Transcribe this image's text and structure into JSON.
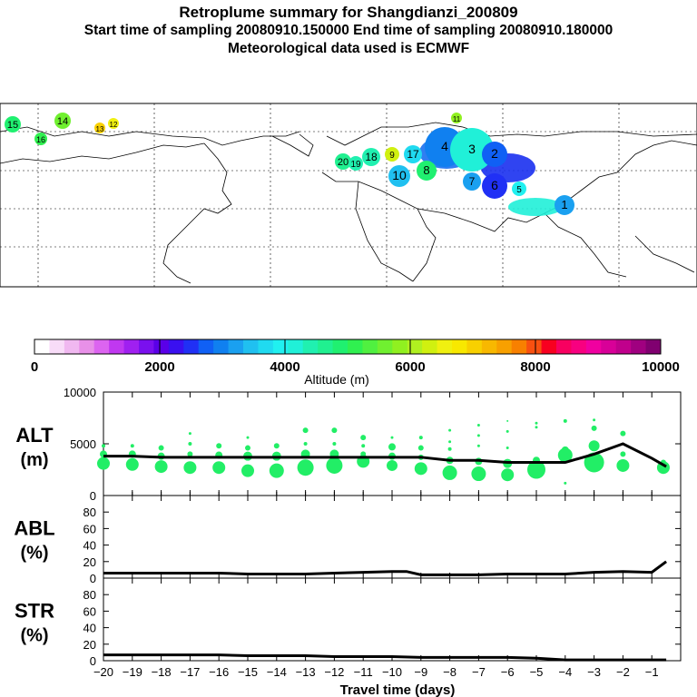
{
  "header": {
    "title": "Retroplume summary for Shangdianzi_200809",
    "sampling": "Start time of sampling 20080910.150000     End time of sampling 20080910.180000",
    "meteo": "Meteorological data used is ECMWF"
  },
  "colorbar": {
    "label": "Altitude (m)",
    "ticks": [
      "0",
      "2000",
      "4000",
      "6000",
      "8000",
      "10000"
    ],
    "colors": [
      "#ffffff",
      "#f8dcf8",
      "#f0b8f0",
      "#e890e8",
      "#dc64f0",
      "#c038f0",
      "#a020f0",
      "#7a10ee",
      "#5a00e8",
      "#3a10f0",
      "#2030f5",
      "#1060f5",
      "#1080f0",
      "#1aa0f0",
      "#20c0f0",
      "#20daf0",
      "#20f0f0",
      "#20f0d8",
      "#20f0b0",
      "#20f090",
      "#20f070",
      "#30f050",
      "#50f040",
      "#70f030",
      "#90f020",
      "#b0f020",
      "#d0f010",
      "#f0f010",
      "#f8e800",
      "#f8d000",
      "#f8b800",
      "#f8a000",
      "#f88000",
      "#f85010",
      "#f80020",
      "#f80060",
      "#f80080",
      "#f000a0",
      "#d80098",
      "#c0008c",
      "#a00080",
      "#800070"
    ]
  },
  "map_labels": [
    {
      "n": "15",
      "c": "#20f070"
    },
    {
      "n": "14",
      "c": "#70f030"
    },
    {
      "n": "13",
      "c": "#f8d000"
    },
    {
      "n": "12",
      "c": "#f0f010"
    },
    {
      "n": "16",
      "c": "#30f050"
    },
    {
      "n": "11",
      "c": "#90f020"
    },
    {
      "n": "20",
      "c": "#20f090"
    },
    {
      "n": "19",
      "c": "#20f0b0"
    },
    {
      "n": "18",
      "c": "#20f0b0"
    },
    {
      "n": "17",
      "c": "#20daf0"
    },
    {
      "n": "10",
      "c": "#20c0f0"
    },
    {
      "n": "9",
      "c": "#d0f010"
    },
    {
      "n": "8",
      "c": "#20f070"
    },
    {
      "n": "7",
      "c": "#1aa0f0"
    },
    {
      "n": "6",
      "c": "#2030f5"
    },
    {
      "n": "5",
      "c": "#20f0f0"
    },
    {
      "n": "4",
      "c": "#1080f0"
    },
    {
      "n": "3",
      "c": "#20f0d8"
    },
    {
      "n": "2",
      "c": "#1060f5"
    },
    {
      "n": "1",
      "c": "#1aa0f0"
    }
  ],
  "chart_data": [
    {
      "type": "scatter",
      "panel": "ALT",
      "ylabel": "ALT\n(m)",
      "ylim": [
        0,
        10000
      ],
      "yticks": [
        "10000",
        "5000",
        "0"
      ],
      "xlim": [
        -20,
        0
      ],
      "median_line": {
        "x": [
          -20,
          -19,
          -18,
          -17,
          -16,
          -15,
          -14,
          -13,
          -12,
          -11,
          -10,
          -9,
          -8,
          -7,
          -6,
          -5,
          -4,
          -3,
          -2,
          -1,
          -0.5
        ],
        "y": [
          3800,
          3800,
          3700,
          3700,
          3700,
          3700,
          3700,
          3700,
          3700,
          3700,
          3700,
          3700,
          3400,
          3400,
          3200,
          3200,
          3200,
          4000,
          5000,
          3600,
          2800
        ]
      },
      "points": [
        {
          "x": -20,
          "y": 3100,
          "r": 7
        },
        {
          "x": -20,
          "y": 4000,
          "r": 4
        },
        {
          "x": -20,
          "y": 4800,
          "r": 2
        },
        {
          "x": -19,
          "y": 3000,
          "r": 7
        },
        {
          "x": -19,
          "y": 4000,
          "r": 4
        },
        {
          "x": -19,
          "y": 4800,
          "r": 2
        },
        {
          "x": -18,
          "y": 2800,
          "r": 7
        },
        {
          "x": -18,
          "y": 3800,
          "r": 4
        },
        {
          "x": -18,
          "y": 4600,
          "r": 3
        },
        {
          "x": -17,
          "y": 2700,
          "r": 7
        },
        {
          "x": -17,
          "y": 4000,
          "r": 3
        },
        {
          "x": -17,
          "y": 5000,
          "r": 2
        },
        {
          "x": -17,
          "y": 6000,
          "r": 1.5
        },
        {
          "x": -16,
          "y": 2700,
          "r": 7
        },
        {
          "x": -16,
          "y": 3900,
          "r": 4
        },
        {
          "x": -16,
          "y": 4800,
          "r": 3
        },
        {
          "x": -15,
          "y": 2400,
          "r": 7
        },
        {
          "x": -15,
          "y": 3800,
          "r": 5
        },
        {
          "x": -15,
          "y": 4600,
          "r": 3
        },
        {
          "x": -15,
          "y": 5600,
          "r": 1.5
        },
        {
          "x": -14,
          "y": 2400,
          "r": 8
        },
        {
          "x": -14,
          "y": 3800,
          "r": 5
        },
        {
          "x": -14,
          "y": 4800,
          "r": 3
        },
        {
          "x": -13,
          "y": 2700,
          "r": 9
        },
        {
          "x": -13,
          "y": 4000,
          "r": 5
        },
        {
          "x": -13,
          "y": 5000,
          "r": 2
        },
        {
          "x": -13,
          "y": 6300,
          "r": 3
        },
        {
          "x": -12,
          "y": 2900,
          "r": 9
        },
        {
          "x": -12,
          "y": 4000,
          "r": 5
        },
        {
          "x": -12,
          "y": 5000,
          "r": 2
        },
        {
          "x": -12,
          "y": 6300,
          "r": 3
        },
        {
          "x": -11,
          "y": 3300,
          "r": 7
        },
        {
          "x": -11,
          "y": 4000,
          "r": 3
        },
        {
          "x": -11,
          "y": 4800,
          "r": 2
        },
        {
          "x": -11,
          "y": 5600,
          "r": 3
        },
        {
          "x": -10,
          "y": 2900,
          "r": 6
        },
        {
          "x": -10,
          "y": 3800,
          "r": 4
        },
        {
          "x": -10,
          "y": 4700,
          "r": 4
        },
        {
          "x": -10,
          "y": 5600,
          "r": 1.5
        },
        {
          "x": -9,
          "y": 2600,
          "r": 7
        },
        {
          "x": -9,
          "y": 3700,
          "r": 3
        },
        {
          "x": -9,
          "y": 4600,
          "r": 3
        },
        {
          "x": -9,
          "y": 5600,
          "r": 2
        },
        {
          "x": -8,
          "y": 2200,
          "r": 8
        },
        {
          "x": -8,
          "y": 3400,
          "r": 4
        },
        {
          "x": -8,
          "y": 4500,
          "r": 2
        },
        {
          "x": -8,
          "y": 5200,
          "r": 1.5
        },
        {
          "x": -8,
          "y": 6300,
          "r": 1.5
        },
        {
          "x": -7,
          "y": 2100,
          "r": 8
        },
        {
          "x": -7,
          "y": 3300,
          "r": 4
        },
        {
          "x": -7,
          "y": 4800,
          "r": 1.5
        },
        {
          "x": -7,
          "y": 5800,
          "r": 1.5
        },
        {
          "x": -7,
          "y": 6800,
          "r": 1.5
        },
        {
          "x": -6,
          "y": 2000,
          "r": 7
        },
        {
          "x": -6,
          "y": 3100,
          "r": 5
        },
        {
          "x": -6,
          "y": 4600,
          "r": 1.5
        },
        {
          "x": -6,
          "y": 6200,
          "r": 1.5
        },
        {
          "x": -6,
          "y": 7200,
          "r": 1
        },
        {
          "x": -5,
          "y": 2500,
          "r": 10
        },
        {
          "x": -5,
          "y": 3400,
          "r": 4
        },
        {
          "x": -5,
          "y": 6600,
          "r": 1.5
        },
        {
          "x": -5,
          "y": 7000,
          "r": 1.5
        },
        {
          "x": -4,
          "y": 1200,
          "r": 1.5
        },
        {
          "x": -4,
          "y": 3900,
          "r": 8
        },
        {
          "x": -4,
          "y": 4400,
          "r": 4
        },
        {
          "x": -4,
          "y": 7200,
          "r": 2
        },
        {
          "x": -3,
          "y": 3200,
          "r": 11
        },
        {
          "x": -3,
          "y": 4800,
          "r": 6
        },
        {
          "x": -3,
          "y": 6500,
          "r": 3
        },
        {
          "x": -3,
          "y": 7300,
          "r": 1.5
        },
        {
          "x": -2,
          "y": 2900,
          "r": 7
        },
        {
          "x": -2,
          "y": 4000,
          "r": 3
        },
        {
          "x": -2,
          "y": 6000,
          "r": 3
        },
        {
          "x": -0.6,
          "y": 2700,
          "r": 7
        },
        {
          "x": -0.6,
          "y": 3200,
          "r": 3
        }
      ]
    },
    {
      "type": "line",
      "panel": "ABL",
      "ylabel": "ABL\n(%)",
      "ylim": [
        0,
        100
      ],
      "yticks": [
        "0",
        "20",
        "40",
        "60",
        "80"
      ],
      "xlim": [
        -20,
        0
      ],
      "series": [
        {
          "name": "ABL",
          "x": [
            -20,
            -19,
            -18,
            -17,
            -16,
            -15,
            -14,
            -13,
            -12,
            -11,
            -10,
            -9.5,
            -9,
            -8,
            -7,
            -6,
            -5,
            -4,
            -3,
            -2,
            -1,
            -0.5
          ],
          "y": [
            6,
            6,
            6,
            6,
            6,
            5,
            5,
            5,
            6,
            7,
            8,
            8,
            4,
            4,
            4,
            5,
            5,
            5,
            7,
            8,
            7,
            20
          ]
        }
      ]
    },
    {
      "type": "line",
      "panel": "STR",
      "ylabel": "STR\n(%)",
      "ylim": [
        0,
        100
      ],
      "yticks": [
        "0",
        "20",
        "40",
        "60",
        "80"
      ],
      "xlim": [
        -20,
        0
      ],
      "series": [
        {
          "name": "STR",
          "x": [
            -20,
            -19,
            -18,
            -17,
            -16,
            -15,
            -14,
            -13,
            -12,
            -11,
            -10,
            -9,
            -8,
            -7,
            -6,
            -5,
            -4,
            -3,
            -2,
            -1,
            -0.5
          ],
          "y": [
            7,
            7,
            7,
            7,
            7,
            6,
            6,
            6,
            5,
            5,
            5,
            4,
            4,
            4,
            4,
            3,
            1,
            1,
            1,
            1,
            1
          ]
        }
      ]
    }
  ],
  "xaxis": {
    "label": "Travel time (days)",
    "ticks": [
      "−20",
      "−19",
      "−18",
      "−17",
      "−16",
      "−15",
      "−14",
      "−13",
      "−12",
      "−11",
      "−10",
      "−9",
      "−8",
      "−7",
      "−6",
      "−5",
      "−4",
      "−3",
      "−2",
      "−1"
    ]
  },
  "colors": {
    "points": "#22ee66",
    "line": "#000000",
    "frame": "#000000"
  }
}
